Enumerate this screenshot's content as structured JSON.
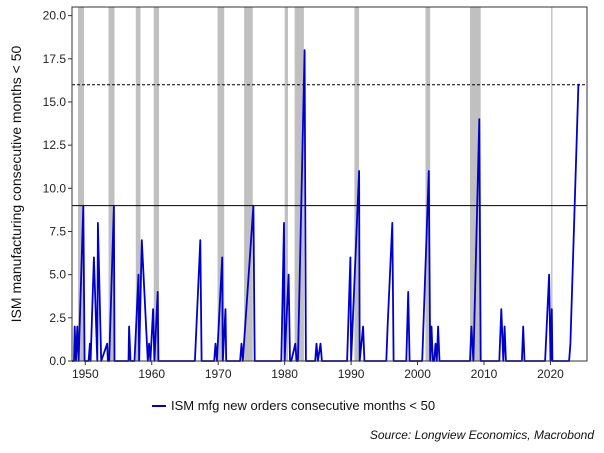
{
  "chart_data": {
    "type": "line",
    "ylabel": "ISM manufacturing consecutive months < 50",
    "xlim": [
      1948,
      2025.5
    ],
    "ylim": [
      0,
      20.5
    ],
    "x_ticks": [
      1950,
      1960,
      1970,
      1980,
      1990,
      2000,
      2010,
      2020
    ],
    "y_ticks": [
      0.0,
      2.5,
      5.0,
      7.5,
      10.0,
      12.5,
      15.0,
      17.5,
      20.0
    ],
    "y_tick_labels": [
      "0.0",
      "2.5",
      "5.0",
      "7.5",
      "10.0",
      "12.5",
      "15.0",
      "17.5",
      "20.0"
    ],
    "reference_lines": [
      {
        "y": 9,
        "style": "solid"
      },
      {
        "y": 16,
        "style": "dashed"
      }
    ],
    "recessions": [
      [
        1948.9,
        1949.8
      ],
      [
        1953.5,
        1954.4
      ],
      [
        1957.6,
        1958.3
      ],
      [
        1960.3,
        1961.1
      ],
      [
        1969.9,
        1970.9
      ],
      [
        1973.9,
        1975.2
      ],
      [
        1980.0,
        1980.5
      ],
      [
        1981.5,
        1982.9
      ],
      [
        1990.5,
        1991.2
      ],
      [
        2001.2,
        2001.9
      ],
      [
        2007.9,
        2009.5
      ],
      [
        2020.1,
        2020.3
      ]
    ],
    "series": [
      {
        "name": "ISM mfg new orders consecutive months < 50",
        "color": "#0000cc",
        "x": [
          1948.0,
          1948.3,
          1948.4,
          1948.6,
          1948.8,
          1949.0,
          1949.7,
          1949.9,
          1950.5,
          1950.7,
          1950.8,
          1951.3,
          1951.8,
          1951.9,
          1952.4,
          1953.3,
          1953.4,
          1953.6,
          1954.3,
          1954.4,
          1956.5,
          1956.6,
          1956.8,
          1957.4,
          1958.0,
          1958.1,
          1958.5,
          1959.4,
          1959.6,
          1959.8,
          1960.2,
          1960.4,
          1960.9,
          1961.0,
          1966.5,
          1967.3,
          1967.5,
          1969.4,
          1969.6,
          1969.8,
          1970.6,
          1970.7,
          1971.1,
          1971.2,
          1973.3,
          1973.5,
          1973.7,
          1975.3,
          1975.5,
          1979.5,
          1979.9,
          1980.0,
          1980.6,
          1980.8,
          1981.0,
          1981.6,
          1981.8,
          1982.0,
          1983.0,
          1983.2,
          1984.6,
          1984.8,
          1985.0,
          1985.4,
          1985.6,
          1989.4,
          1989.9,
          1990.0,
          1991.2,
          1991.3,
          1991.8,
          1992.0,
          1995.3,
          1995.5,
          1996.2,
          1996.4,
          1998.3,
          1998.6,
          1998.8,
          2000.7,
          2001.7,
          2001.9,
          2002.1,
          2002.3,
          2002.5,
          2002.7,
          2002.9,
          2003.1,
          2003.3,
          2007.9,
          2008.1,
          2008.4,
          2009.3,
          2009.5,
          2012.3,
          2012.6,
          2012.9,
          2013.1,
          2013.3,
          2015.7,
          2015.9,
          2016.1,
          2019.2,
          2019.8,
          2020.0,
          2020.2,
          2020.3,
          2020.5,
          2022.8,
          2023.0,
          2024.2,
          2024.4
        ],
        "y": [
          0,
          0,
          2,
          0,
          2,
          0,
          9,
          0,
          0,
          1,
          0,
          6,
          0,
          8,
          0,
          1,
          0,
          0,
          9,
          0,
          0,
          2,
          0,
          0,
          5,
          0,
          7,
          0,
          1,
          0,
          3,
          0,
          4,
          0,
          0,
          7,
          0,
          0,
          1,
          0,
          6,
          0,
          3,
          0,
          0,
          1,
          0,
          9,
          0,
          0,
          8,
          0,
          5,
          0,
          0,
          1,
          0,
          0,
          18,
          0,
          0,
          1,
          0,
          1,
          0,
          0,
          6,
          0,
          11,
          0,
          2,
          0,
          0,
          2,
          8,
          0,
          0,
          4,
          0,
          0,
          11,
          0,
          2,
          0,
          0,
          1,
          0,
          2,
          0,
          0,
          2,
          0,
          14,
          0,
          0,
          3,
          0,
          2,
          0,
          0,
          2,
          0,
          0,
          5,
          0,
          3,
          0,
          0,
          0,
          1,
          16,
          16
        ]
      }
    ]
  },
  "legend": {
    "label": "ISM mfg new orders consecutive months < 50"
  },
  "source": "Source: Longview Economics, Macrobond"
}
